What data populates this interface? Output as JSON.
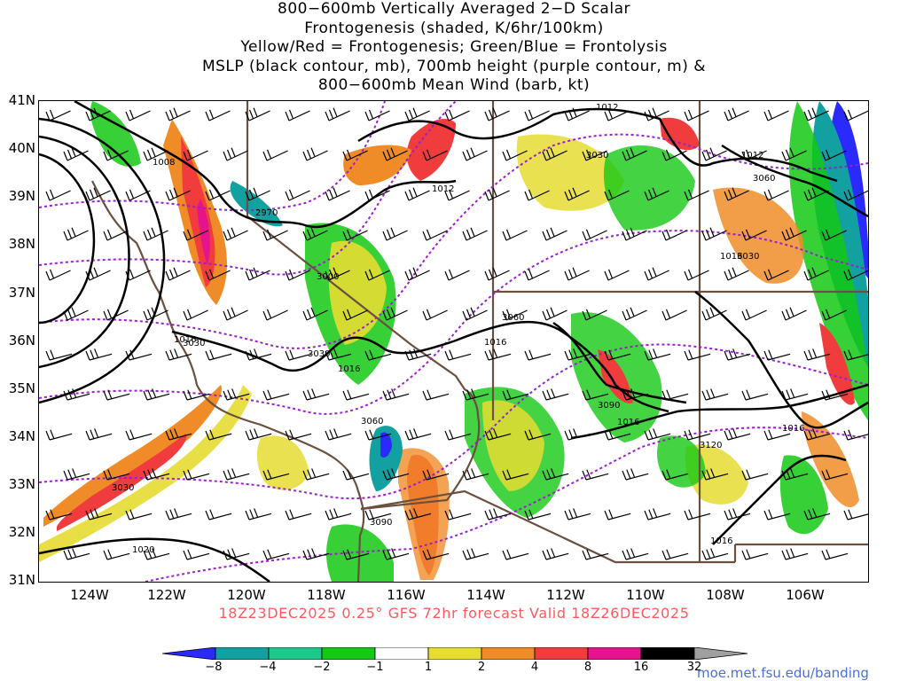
{
  "title": {
    "line1": "800−600mb Vertically Averaged 2−D Scalar",
    "line2": "Frontogenesis (shaded, K/6hr/100km)",
    "line3": "Yellow/Red = Frontogenesis;  Green/Blue = Frontolysis",
    "line4": "MSLP (black contour, mb), 700mb height (purple contour, m) &",
    "line5": "800−600mb Mean Wind (barb, kt)"
  },
  "axes": {
    "lat_labels": [
      "41N",
      "40N",
      "39N",
      "38N",
      "37N",
      "36N",
      "35N",
      "34N",
      "33N",
      "32N",
      "31N"
    ],
    "lon_labels": [
      "124W",
      "122W",
      "120W",
      "118W",
      "116W",
      "114W",
      "112W",
      "110W",
      "108W",
      "106W"
    ]
  },
  "run_label": "18Z23DEC2025 0.25° GFS 72hr forecast Valid 18Z26DEC2025",
  "colorbar": {
    "labels": [
      "−8",
      "−4",
      "−2",
      "−1",
      "1",
      "2",
      "4",
      "8",
      "16",
      "32"
    ],
    "colors": [
      "#2a2aff",
      "#12a0a0",
      "#1ec88a",
      "#14c814",
      "#ffffff",
      "#e6dc32",
      "#f08c28",
      "#f03c3c",
      "#e6148c",
      "#000000",
      "#a0a0a0"
    ]
  },
  "mslp_labels": [
    "1008",
    "1012",
    "1012",
    "1012",
    "1016",
    "1016",
    "1016",
    "1016",
    "1016",
    "1016",
    "1016",
    "1020"
  ],
  "height_labels": [
    "2970",
    "3000",
    "3030",
    "3030",
    "3030",
    "3060",
    "3060",
    "3060",
    "3090",
    "3090",
    "3120",
    "3030",
    "3030"
  ],
  "credit": "moe.met.fsu.edu/banding",
  "colors": {
    "mslp": "#000000",
    "height": "#9b1fd0",
    "border": "#6b4f3f",
    "run_label": "#ff5a5a",
    "credit": "#4a6fd8"
  }
}
